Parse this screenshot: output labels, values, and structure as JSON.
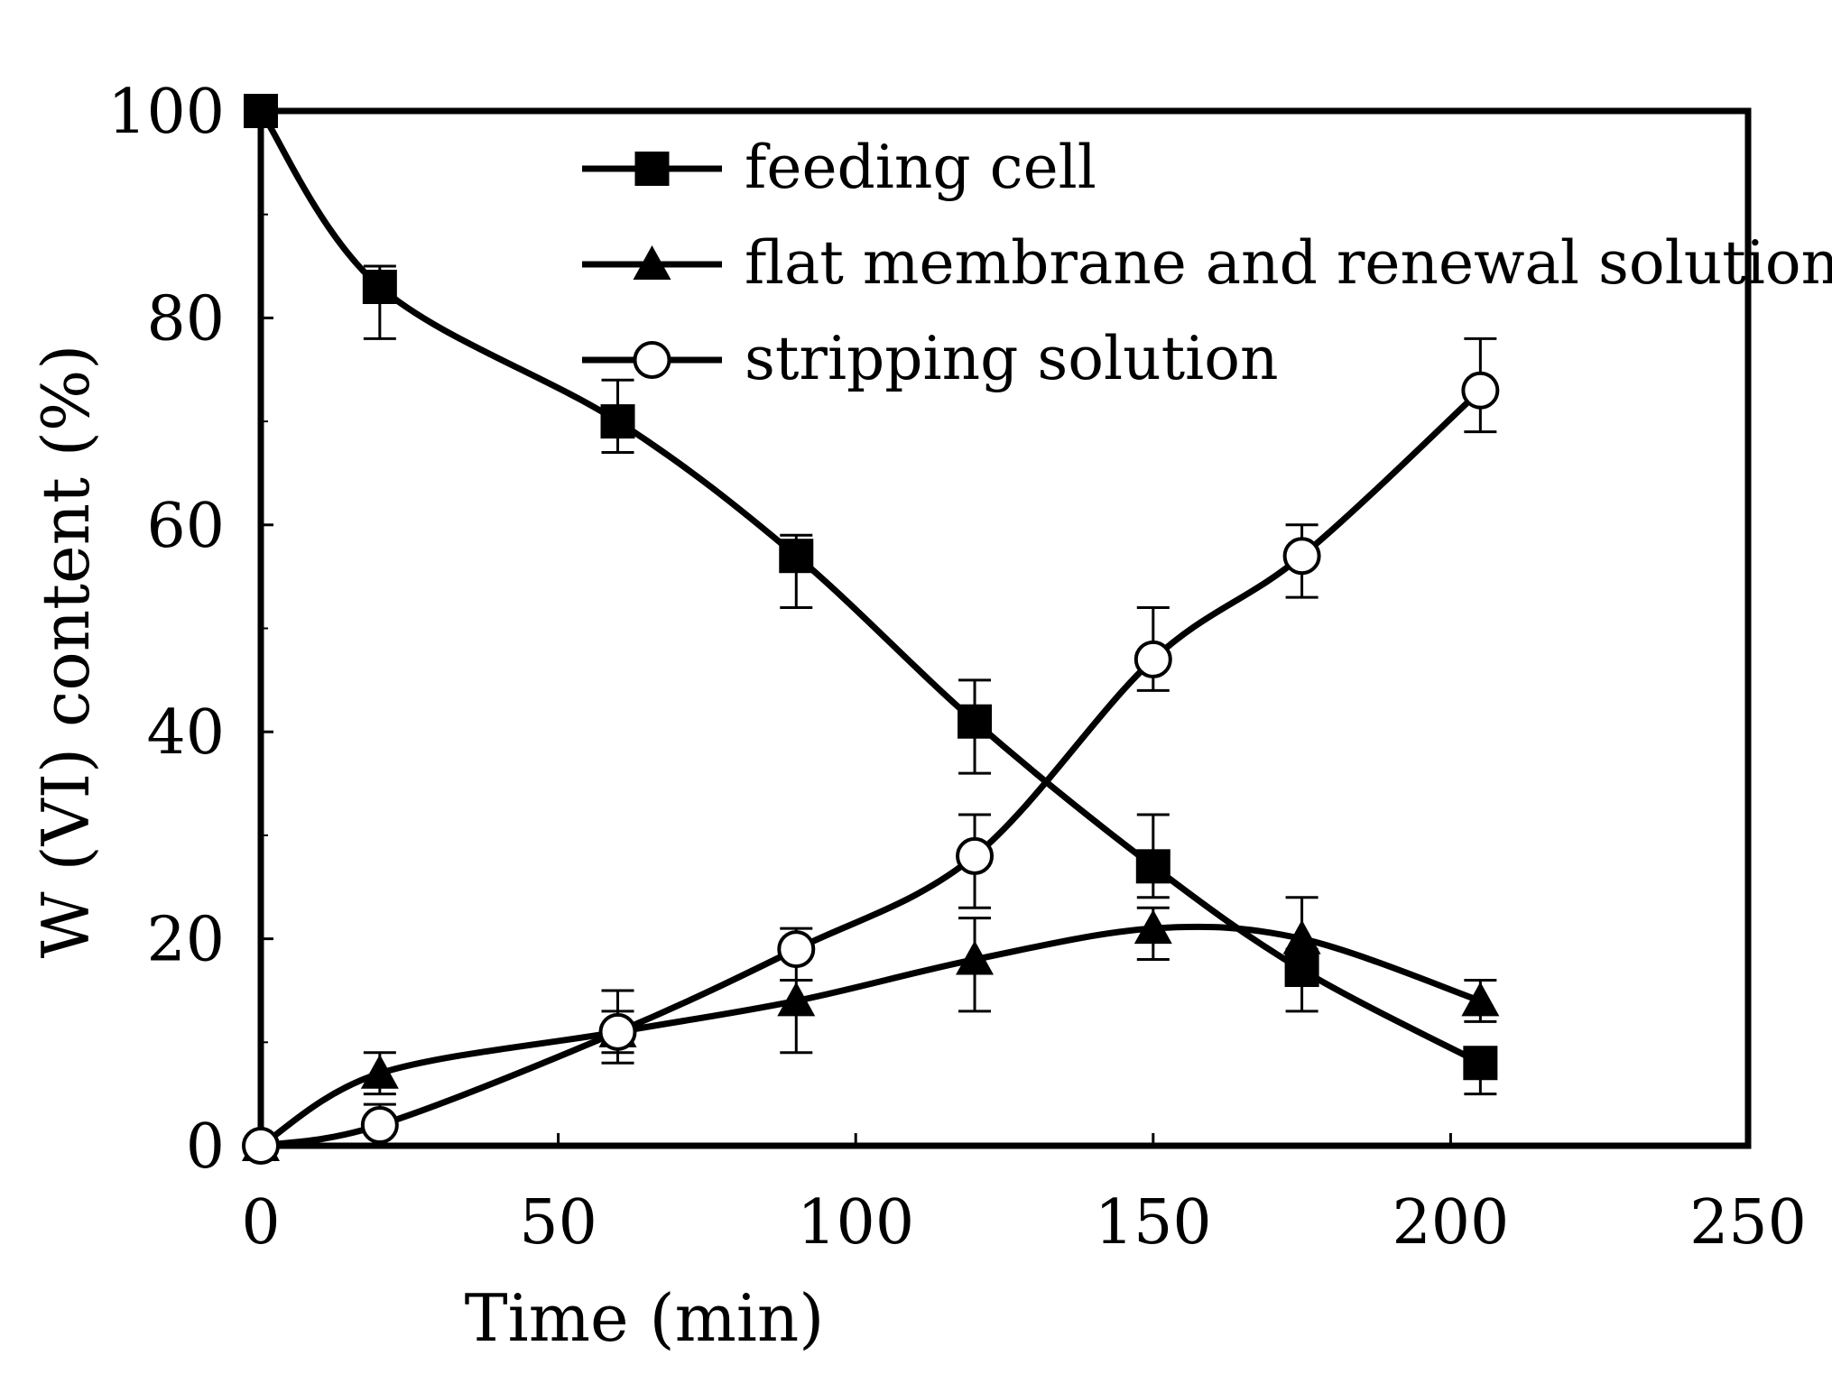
{
  "chart_data": {
    "type": "line",
    "title": "",
    "xlabel": "Time (min)",
    "ylabel": "W (VI) content (%)",
    "xlim": [
      0,
      250
    ],
    "ylim": [
      0,
      100
    ],
    "xticks": [
      0,
      50,
      100,
      150,
      200,
      250
    ],
    "yticks": [
      0,
      20,
      40,
      60,
      80,
      100
    ],
    "grid": false,
    "legend_position": "top-right",
    "x": [
      0,
      20,
      60,
      90,
      120,
      150,
      175,
      205
    ],
    "series": [
      {
        "name": "feeding cell",
        "marker": "filled-square",
        "values": [
          100,
          83,
          70,
          57,
          41,
          27,
          17,
          8
        ],
        "err_high": [
          100,
          85,
          74,
          59,
          45,
          32,
          19,
          9
        ],
        "err_low": [
          100,
          78,
          67,
          52,
          36,
          24,
          13,
          5
        ]
      },
      {
        "name": "flat membrane and renewal solution",
        "marker": "filled-triangle",
        "values": [
          0,
          7,
          11,
          14,
          18,
          21,
          20,
          14
        ],
        "err_high": [
          0,
          9,
          13,
          16,
          22,
          23,
          24,
          16
        ],
        "err_low": [
          0,
          5,
          8,
          9,
          13,
          18,
          16,
          12
        ]
      },
      {
        "name": "stripping solution",
        "marker": "open-circle",
        "values": [
          0,
          2,
          11,
          19,
          28,
          47,
          57,
          73
        ],
        "err_high": [
          0,
          4,
          15,
          21,
          32,
          52,
          60,
          78
        ],
        "err_low": [
          0,
          0,
          9,
          16,
          23,
          44,
          53,
          69
        ]
      }
    ]
  }
}
